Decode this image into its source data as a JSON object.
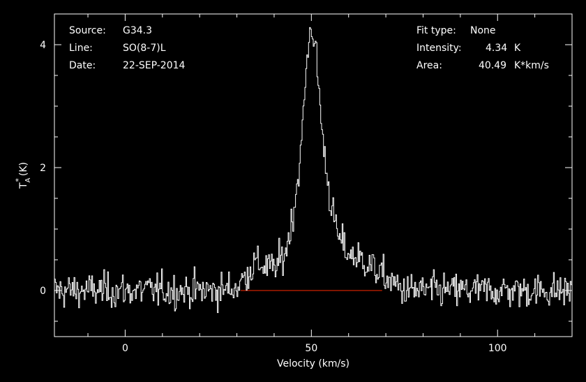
{
  "header_left": {
    "source_label": "Source:",
    "source_value": "G34.3",
    "line_label": "Line:",
    "line_value": "SO(8-7)L",
    "date_label": "Date:",
    "date_value": "22-SEP-2014"
  },
  "header_right": {
    "fit_label": "Fit type:",
    "fit_value": "None",
    "intensity_label": "Intensity:",
    "intensity_value": "4.34",
    "intensity_unit": "K",
    "area_label": "Area:",
    "area_value": "40.49",
    "area_unit": "K*km/s"
  },
  "colors": {
    "background": "#000000",
    "spectrum": "#ffffff",
    "baseline": "#cc2200",
    "axes": "#ffffff"
  },
  "chart_data": {
    "type": "line",
    "xlabel": "Velocity (km/s)",
    "ylabel": "T_A* (K)",
    "xlim": [
      -19,
      120
    ],
    "ylim": [
      -0.75,
      4.5
    ],
    "x_ticks": [
      0,
      50,
      100
    ],
    "x_tick_labels": [
      "0",
      "50",
      "100"
    ],
    "y_ticks": [
      0,
      2,
      4
    ],
    "y_tick_labels": [
      "0",
      "2",
      "4"
    ],
    "x_minor_step": 10,
    "y_minor_step": 0.5,
    "grid": false,
    "baseline": {
      "y": 0,
      "x_range": [
        31,
        69
      ]
    },
    "series": [
      {
        "profile_x": [
          -19,
          25,
          30,
          35,
          40,
          43,
          45,
          47,
          48,
          49,
          50,
          51,
          52,
          53,
          55,
          57,
          60,
          65,
          70,
          75,
          120
        ],
        "profile_y": [
          0,
          0,
          0.05,
          0.45,
          0.35,
          0.6,
          1.2,
          2.1,
          3.0,
          3.9,
          4.34,
          4.0,
          3.3,
          2.5,
          1.5,
          0.9,
          0.6,
          0.45,
          0.2,
          0,
          0
        ],
        "noise_rms": 0.14,
        "channel_width_kms": 0.25
      }
    ]
  }
}
